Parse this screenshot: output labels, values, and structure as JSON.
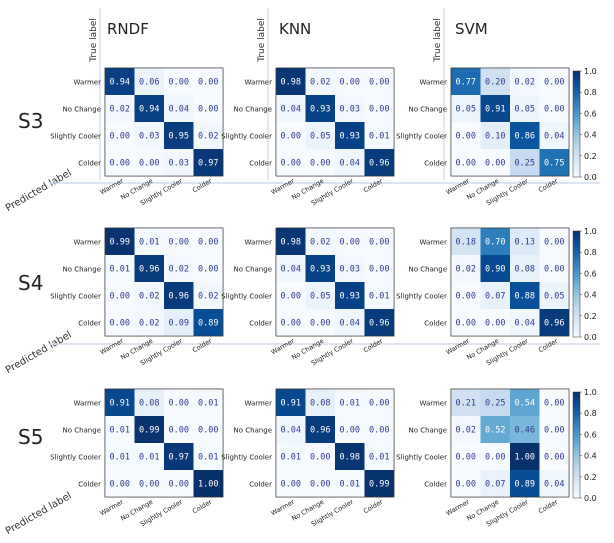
{
  "chart_data": {
    "type": "heatmap",
    "columns": [
      "RNDF",
      "KNN",
      "SVM"
    ],
    "rows": [
      "S3",
      "S4",
      "S5"
    ],
    "ylabel": "True label",
    "xlabel": "Predicted label",
    "class_labels": [
      "Warmer",
      "No Change",
      "Slightly Cooler",
      "Colder"
    ],
    "colorbar_ticks": [
      "1.0",
      "0.8",
      "0.6",
      "0.4",
      "0.2",
      "0.0"
    ],
    "colormap": [
      "#f7fbff",
      "#08306b"
    ],
    "matrices": {
      "S3": {
        "RNDF": [
          [
            "0.94",
            "0.06",
            "0.00",
            "0.00"
          ],
          [
            "0.02",
            "0.94",
            "0.04",
            "0.00"
          ],
          [
            "0.00",
            "0.03",
            "0.95",
            "0.02"
          ],
          [
            "0.00",
            "0.00",
            "0.03",
            "0.97"
          ]
        ],
        "KNN": [
          [
            "0.98",
            "0.02",
            "0.00",
            "0.00"
          ],
          [
            "0.04",
            "0.93",
            "0.03",
            "0.00"
          ],
          [
            "0.00",
            "0.05",
            "0.93",
            "0.01"
          ],
          [
            "0.00",
            "0.00",
            "0.04",
            "0.96"
          ]
        ],
        "SVM": [
          [
            "0.77",
            "0.20",
            "0.02",
            "0.00"
          ],
          [
            "0.05",
            "0.91",
            "0.05",
            "0.00"
          ],
          [
            "0.00",
            "0.10",
            "0.86",
            "0.04"
          ],
          [
            "0.00",
            "0.00",
            "0.25",
            "0.75"
          ]
        ]
      },
      "S4": {
        "RNDF": [
          [
            "0.99",
            "0.01",
            "0.00",
            "0.00"
          ],
          [
            "0.01",
            "0.96",
            "0.02",
            "0.00"
          ],
          [
            "0.00",
            "0.02",
            "0.96",
            "0.02"
          ],
          [
            "0.00",
            "0.02",
            "0.09",
            "0.89"
          ]
        ],
        "KNN": [
          [
            "0.98",
            "0.02",
            "0.00",
            "0.00"
          ],
          [
            "0.04",
            "0.93",
            "0.03",
            "0.00"
          ],
          [
            "0.00",
            "0.05",
            "0.93",
            "0.01"
          ],
          [
            "0.00",
            "0.00",
            "0.04",
            "0.96"
          ]
        ],
        "SVM": [
          [
            "0.18",
            "0.70",
            "0.13",
            "0.00"
          ],
          [
            "0.02",
            "0.90",
            "0.08",
            "0.00"
          ],
          [
            "0.00",
            "0.07",
            "0.88",
            "0.05"
          ],
          [
            "0.00",
            "0.00",
            "0.04",
            "0.96"
          ]
        ]
      },
      "S5": {
        "RNDF": [
          [
            "0.91",
            "0.08",
            "0.00",
            "0.01"
          ],
          [
            "0.01",
            "0.99",
            "0.00",
            "0.00"
          ],
          [
            "0.01",
            "0.01",
            "0.97",
            "0.01"
          ],
          [
            "0.00",
            "0.00",
            "0.00",
            "1.00"
          ]
        ],
        "KNN": [
          [
            "0.91",
            "0.08",
            "0.01",
            "0.00"
          ],
          [
            "0.04",
            "0.96",
            "0.00",
            "0.00"
          ],
          [
            "0.01",
            "0.00",
            "0.98",
            "0.01"
          ],
          [
            "0.00",
            "0.00",
            "0.01",
            "0.99"
          ]
        ],
        "SVM": [
          [
            "0.21",
            "0.25",
            "0.54",
            "0.00"
          ],
          [
            "0.02",
            "0.52",
            "0.46",
            "0.00"
          ],
          [
            "0.00",
            "0.00",
            "1.00",
            "0.00"
          ],
          [
            "0.00",
            "0.07",
            "0.89",
            "0.04"
          ]
        ]
      }
    }
  }
}
